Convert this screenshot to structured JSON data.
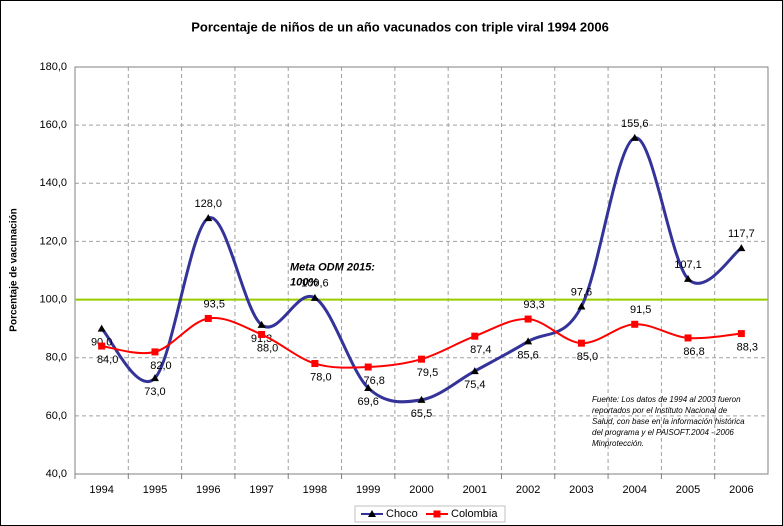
{
  "chart_data": {
    "type": "line",
    "title": "Porcentaje de niños de un año vacunados con triple viral 1994 2006",
    "y_label": "Porcentaje de vacunación",
    "categories": [
      "1994",
      "1995",
      "1996",
      "1997",
      "1998",
      "1999",
      "2000",
      "2001",
      "2002",
      "2003",
      "2004",
      "2005",
      "2006"
    ],
    "series": [
      {
        "name": "Choco",
        "color": "#333399",
        "marker": "triangle",
        "values": [
          90.0,
          73.0,
          128.0,
          91.3,
          100.6,
          69.6,
          65.5,
          75.4,
          85.6,
          97.6,
          155.6,
          107.1,
          117.7
        ],
        "value_labels": [
          "90,0",
          "73,0",
          "128,0",
          "91,3",
          "100,6",
          "69,6",
          "65,5",
          "75,4",
          "85,6",
          "97,6",
          "155,6",
          "107,1",
          "117,7"
        ]
      },
      {
        "name": "Colombia",
        "color": "#ff0000",
        "marker": "square",
        "values": [
          84.0,
          82.0,
          93.5,
          88.0,
          78.0,
          76.8,
          79.5,
          87.4,
          93.3,
          85.0,
          91.5,
          86.8,
          88.3
        ],
        "value_labels": [
          "84,0",
          "82,0",
          "93,5",
          "88,0",
          "78,0",
          "76,8",
          "79,5",
          "87,4",
          "93,3",
          "85,0",
          "91,5",
          "86,8",
          "88,3"
        ]
      }
    ],
    "ylim": [
      40,
      180
    ],
    "yticks": [
      {
        "value": 40,
        "label": "40,0"
      },
      {
        "value": 60,
        "label": "60,0"
      },
      {
        "value": 80,
        "label": "80,0"
      },
      {
        "value": 100,
        "label": "100,0"
      },
      {
        "value": 120,
        "label": "120,0"
      },
      {
        "value": 140,
        "label": "140,0"
      },
      {
        "value": 160,
        "label": "160,0"
      },
      {
        "value": 180,
        "label": "180,0"
      }
    ],
    "grid": true,
    "target_line": {
      "value": 100,
      "color": "#99cc00",
      "label_1": "Meta ODM 2015:",
      "label_2": "100%"
    },
    "source_note": [
      "Fuente: Los datos de 1994 al 2003 fueron",
      "reportados por el Instituto Nacional de",
      "Salud, con base en la información histórica",
      "del programa y el PAISOFT.2004 - 2006",
      "Minprotección."
    ],
    "legend": "bottom"
  }
}
